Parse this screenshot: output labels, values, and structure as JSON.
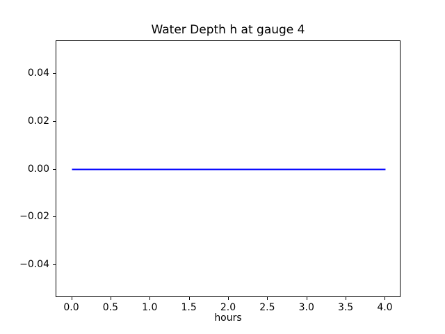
{
  "figure": {
    "background": "#ffffff",
    "text_color": "#000000",
    "spine_color": "#000000"
  },
  "chart_data": {
    "type": "line",
    "title": "Water Depth h at gauge 4",
    "xlabel": "hours",
    "ylabel": "",
    "xlim": [
      -0.2,
      4.2
    ],
    "ylim": [
      -0.0535,
      0.0535
    ],
    "xticks": [
      0.0,
      0.5,
      1.0,
      1.5,
      2.0,
      2.5,
      3.0,
      3.5,
      4.0
    ],
    "xtick_labels": [
      "0.0",
      "0.5",
      "1.0",
      "1.5",
      "2.0",
      "2.5",
      "3.0",
      "3.5",
      "4.0"
    ],
    "yticks": [
      -0.04,
      -0.02,
      0.0,
      0.02,
      0.04
    ],
    "ytick_labels": [
      "−0.04",
      "−0.02",
      "0.00",
      "0.02",
      "0.04"
    ],
    "grid": false,
    "legend": null,
    "series": [
      {
        "name": "water-depth",
        "color": "#0000ff",
        "linewidth": 2,
        "x": [
          0.0,
          4.0
        ],
        "y": [
          0.0,
          0.0
        ]
      }
    ]
  }
}
